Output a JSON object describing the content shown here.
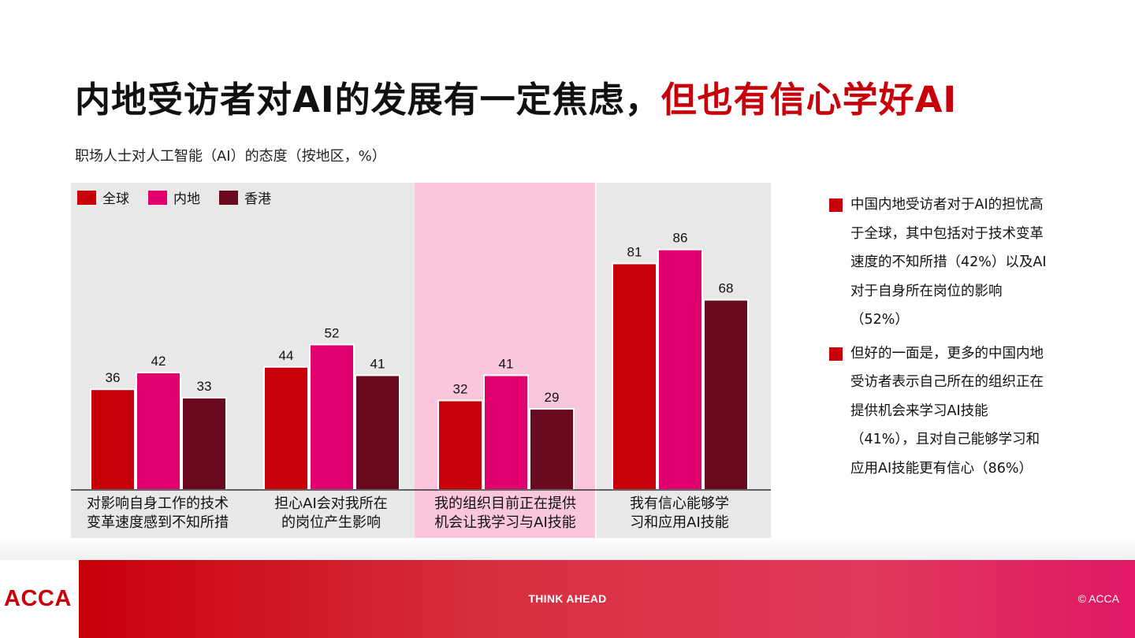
{
  "title": {
    "part1": "内地受访者对AI的发展有一定焦虑，",
    "part2": "但也有信心学好AI"
  },
  "subtitle": "职场人士对人工智能（AI）的态度（按地区，%）",
  "colors": {
    "global": "#c8000a",
    "mainland": "#e0006e",
    "hongkong": "#6b0a1e",
    "accent_red": "#c8000a",
    "panel_bg": "#e8e8e8",
    "highlight_bg": "#f9c6dc"
  },
  "chart_data": {
    "type": "bar",
    "categories": [
      [
        "对影响自身工作的技术",
        "变革速度感到不知所措"
      ],
      [
        "担心AI会对我所在",
        "的岗位产生影响"
      ],
      [
        "我的组织目前正在提供",
        "机会让我学习与AI技能"
      ],
      [
        "我有信心能够学",
        "习和应用AI技能"
      ]
    ],
    "series": [
      {
        "name": "全球",
        "values": [
          36,
          44,
          32,
          81
        ]
      },
      {
        "name": "内地",
        "values": [
          42,
          52,
          41,
          86
        ]
      },
      {
        "name": "香港",
        "values": [
          33,
          41,
          29,
          68
        ]
      }
    ],
    "ylim": [
      0,
      100
    ],
    "grid": false,
    "legend": "top-left",
    "highlighted_category": 2
  },
  "notes": [
    "中国内地受访者对于AI的担忧高于全球，其中包括对于技术变革速度的不知所措（42%）以及AI对于自身所在岗位的影响（52%）",
    "但好的一面是，更多的中国内地受访者表示自己所在的组织正在提供机会来学习AI技能（41%），且对自己能够学习和应用AI技能更有信心（86%）"
  ],
  "footer": {
    "logo": "ACCA",
    "tagline": "THINK AHEAD",
    "copyright": "© ACCA"
  }
}
